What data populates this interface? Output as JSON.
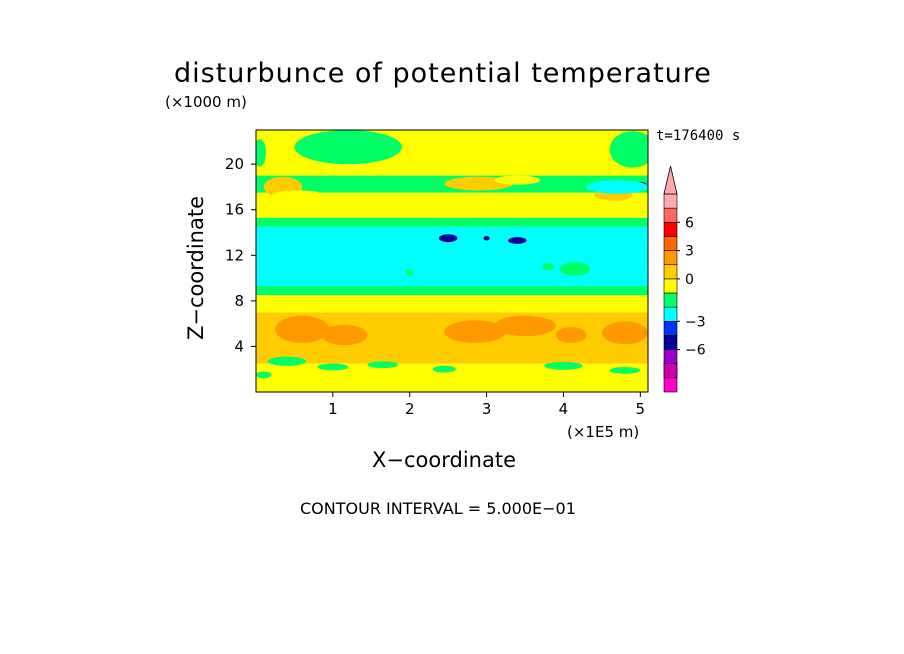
{
  "chart_data": {
    "type": "heatmap",
    "title": "disturbunce of potential temperature",
    "time_label": "t=176400 s",
    "xlabel": "X−coordinate",
    "ylabel": "Z−coordinate",
    "x_scale_label": "(×1E5 m)",
    "y_scale_label": "(×1000 m)",
    "footer": "CONTOUR INTERVAL = 5.000E−01",
    "xlim": [
      0,
      5.1
    ],
    "ylim": [
      0,
      23
    ],
    "x_ticks": [
      1,
      2,
      3,
      4,
      5
    ],
    "y_ticks": [
      4,
      8,
      12,
      16,
      20
    ],
    "bands": [
      {
        "z0": 0,
        "z1": 2.5,
        "value": 0.5
      },
      {
        "z0": 2.5,
        "z1": 7,
        "value": 1.3
      },
      {
        "z0": 7,
        "z1": 8.5,
        "value": 0.5
      },
      {
        "z0": 8.5,
        "z1": 9.3,
        "value": -0.3
      },
      {
        "z0": 9.3,
        "z1": 14.5,
        "value": -0.7
      },
      {
        "z0": 14.5,
        "z1": 15.3,
        "value": -0.2
      },
      {
        "z0": 15.3,
        "z1": 17.5,
        "value": 0.5
      },
      {
        "z0": 17.5,
        "z1": 19,
        "value": 0.2
      },
      {
        "z0": 19,
        "z1": 23,
        "value": 0.5
      }
    ],
    "patches": [
      {
        "x": 0.35,
        "z": 18.0,
        "rx": 0.25,
        "rz": 0.9,
        "value": 1.6
      },
      {
        "x": 0.55,
        "z": 17.2,
        "rx": 0.35,
        "rz": 0.5,
        "value": 1.0
      },
      {
        "x": 2.9,
        "z": 18.3,
        "rx": 0.45,
        "rz": 0.6,
        "value": 1.3
      },
      {
        "x": 3.4,
        "z": 18.6,
        "rx": 0.3,
        "rz": 0.4,
        "value": 1.0
      },
      {
        "x": 4.25,
        "z": 16.8,
        "rx": 0.4,
        "rz": 0.5,
        "value": 1.0
      },
      {
        "x": 4.65,
        "z": 17.3,
        "rx": 0.25,
        "rz": 0.5,
        "value": 1.3
      },
      {
        "x": 1.2,
        "z": 21.5,
        "rx": 0.7,
        "rz": 1.5,
        "value": 0.2
      },
      {
        "x": 4.9,
        "z": 21.3,
        "rx": 0.3,
        "rz": 1.6,
        "value": 0.2
      },
      {
        "x": 0.05,
        "z": 21.0,
        "rx": 0.08,
        "rz": 1.2,
        "value": 0.2
      },
      {
        "x": 2.5,
        "z": 13.5,
        "rx": 0.12,
        "rz": 0.35,
        "value": -3.2
      },
      {
        "x": 3.4,
        "z": 13.3,
        "rx": 0.12,
        "rz": 0.3,
        "value": -3.2
      },
      {
        "x": 3.0,
        "z": 13.5,
        "rx": 0.04,
        "rz": 0.2,
        "value": -3.2
      },
      {
        "x": 5.0,
        "z": 18.2,
        "rx": 0.08,
        "rz": 0.25,
        "value": -3.2
      },
      {
        "x": 4.7,
        "z": 18.0,
        "rx": 0.4,
        "rz": 0.6,
        "value": -0.8
      },
      {
        "x": 4.15,
        "z": 10.8,
        "rx": 0.2,
        "rz": 0.6,
        "value": -0.2
      },
      {
        "x": 3.8,
        "z": 11.0,
        "rx": 0.08,
        "rz": 0.3,
        "value": -0.2
      },
      {
        "x": 2.0,
        "z": 10.5,
        "rx": 0.05,
        "rz": 0.3,
        "value": -0.2
      },
      {
        "x": 0.6,
        "z": 5.5,
        "rx": 0.35,
        "rz": 1.2,
        "value": 2.0
      },
      {
        "x": 1.15,
        "z": 5.0,
        "rx": 0.3,
        "rz": 0.9,
        "value": 1.8
      },
      {
        "x": 2.85,
        "z": 5.3,
        "rx": 0.4,
        "rz": 1.0,
        "value": 2.0
      },
      {
        "x": 3.5,
        "z": 5.8,
        "rx": 0.4,
        "rz": 0.9,
        "value": 1.8
      },
      {
        "x": 4.1,
        "z": 5.0,
        "rx": 0.2,
        "rz": 0.7,
        "value": 2.0
      },
      {
        "x": 4.8,
        "z": 5.2,
        "rx": 0.3,
        "rz": 1.0,
        "value": 1.8
      },
      {
        "x": 0.4,
        "z": 2.7,
        "rx": 0.25,
        "rz": 0.4,
        "value": 0.2
      },
      {
        "x": 1.0,
        "z": 2.2,
        "rx": 0.2,
        "rz": 0.3,
        "value": 0.2
      },
      {
        "x": 1.65,
        "z": 2.4,
        "rx": 0.2,
        "rz": 0.3,
        "value": 0.2
      },
      {
        "x": 2.45,
        "z": 2.0,
        "rx": 0.15,
        "rz": 0.3,
        "value": 0.2
      },
      {
        "x": 4.0,
        "z": 2.3,
        "rx": 0.25,
        "rz": 0.35,
        "value": 0.2
      },
      {
        "x": 4.8,
        "z": 1.9,
        "rx": 0.2,
        "rz": 0.3,
        "value": 0.2
      },
      {
        "x": 0.1,
        "z": 1.5,
        "rx": 0.1,
        "rz": 0.3,
        "value": 0.2
      }
    ],
    "colorbar": {
      "levels": [
        {
          "color": "#ff00cc"
        },
        {
          "color": "#cc00aa"
        },
        {
          "color": "#9900cc"
        },
        {
          "color": "#000099"
        },
        {
          "color": "#0033ff"
        },
        {
          "color": "#00ffff"
        },
        {
          "color": "#00ff66"
        },
        {
          "color": "#ffff00"
        },
        {
          "color": "#ffcc00"
        },
        {
          "color": "#ff9900"
        },
        {
          "color": "#ff6600"
        },
        {
          "color": "#ff0000"
        },
        {
          "color": "#ff6666"
        },
        {
          "color": "#ffaaaa"
        }
      ],
      "tick_labels": [
        {
          "label": "6",
          "after_level": 11
        },
        {
          "label": "3",
          "after_level": 9
        },
        {
          "label": "0",
          "after_level": 7
        },
        {
          "label": "−3",
          "after_level": 4
        },
        {
          "label": "−6",
          "after_level": 2
        }
      ]
    }
  }
}
